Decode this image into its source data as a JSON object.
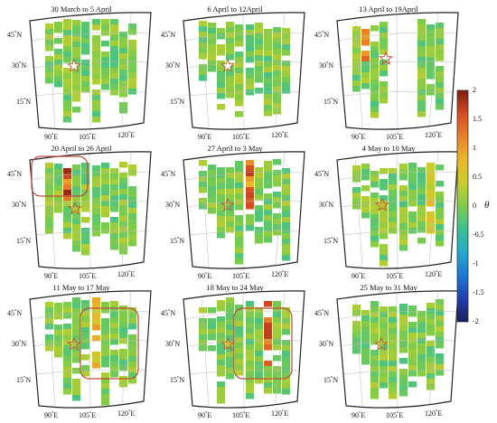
{
  "panels": [
    {
      "title": "30 March to 5 April",
      "variant": 0,
      "highlight": null
    },
    {
      "title": "6 April to 12April",
      "variant": 1,
      "highlight": null
    },
    {
      "title": "13 April to 19April",
      "variant": 2,
      "highlight": null
    },
    {
      "title": "20 April to 26 April",
      "variant": 3,
      "highlight": "north-west"
    },
    {
      "title": "27 April to 3 May",
      "variant": 4,
      "highlight": null
    },
    {
      "title": "4 May to 10 May",
      "variant": 5,
      "highlight": null
    },
    {
      "title": "11 May to 17 May",
      "variant": 6,
      "highlight": "east"
    },
    {
      "title": "18 May to 24 May",
      "variant": 7,
      "highlight": "east"
    },
    {
      "title": "25 May to 31 May",
      "variant": 8,
      "highlight": null
    }
  ],
  "axes": {
    "lat_labels": [
      [
        "45",
        "N"
      ],
      [
        "30",
        "N"
      ],
      [
        "15",
        "N"
      ]
    ],
    "lon_labels": [
      [
        "90",
        "E"
      ],
      [
        "105",
        "E"
      ],
      [
        "120",
        "E"
      ]
    ],
    "degree_symbol": "°"
  },
  "colorbar": {
    "ticks": [
      "2",
      "1.5",
      "1",
      "0.5",
      "0",
      "-0.5",
      "-1",
      "-1.5",
      "-2"
    ],
    "label": "θ",
    "min": -2,
    "max": 2,
    "colors": [
      "#1b1d5c",
      "#1f3fb0",
      "#1d77d6",
      "#25a9c9",
      "#3bbf93",
      "#7fcb4b",
      "#c7cd2e",
      "#ebb72a",
      "#e7822a",
      "#d54a22",
      "#7a1d12"
    ]
  },
  "colors": {
    "star_outline": "#b5662b",
    "highlight_box": "#b84a3b",
    "frame": "#222222"
  }
}
